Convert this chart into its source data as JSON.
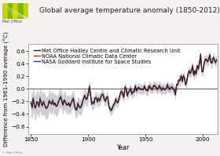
{
  "title": "Global average temperature anomaly (1850-2012)",
  "ylabel": "Difference from 1961-1990 average (°C)",
  "xlabel": "Year",
  "xlim": [
    1848,
    2013
  ],
  "ylim": [
    -0.72,
    0.72
  ],
  "yticks": [
    -0.6,
    -0.4,
    -0.2,
    0.0,
    0.2,
    0.4,
    0.6
  ],
  "xticks": [
    1850,
    1900,
    1950,
    2000
  ],
  "legend_labels": [
    "Met Office Hadley Centre and Climatic Research Unit",
    "NOAA National Climatic Data Center",
    "NASA Goddard Institute for Space Studies"
  ],
  "bg_color": "#f5f3f0",
  "plot_bg": "#ffffff",
  "title_fontsize": 6.5,
  "axis_fontsize": 5.5,
  "legend_fontsize": 4.8,
  "hadcrut": [
    -0.22,
    -0.29,
    -0.15,
    -0.27,
    -0.31,
    -0.2,
    -0.22,
    -0.28,
    -0.16,
    -0.22,
    -0.26,
    -0.21,
    -0.25,
    -0.31,
    -0.3,
    -0.27,
    -0.18,
    -0.22,
    -0.24,
    -0.19,
    -0.26,
    -0.22,
    -0.28,
    -0.26,
    -0.21,
    -0.16,
    -0.13,
    -0.19,
    -0.26,
    -0.17,
    -0.21,
    -0.25,
    -0.26,
    -0.22,
    -0.27,
    -0.24,
    -0.18,
    -0.16,
    -0.25,
    -0.33,
    -0.33,
    -0.24,
    -0.28,
    -0.29,
    -0.28,
    -0.2,
    -0.16,
    -0.1,
    -0.17,
    -0.15,
    -0.08,
    0.04,
    -0.1,
    -0.24,
    -0.22,
    -0.22,
    -0.15,
    -0.13,
    -0.21,
    -0.15,
    -0.18,
    -0.13,
    -0.09,
    -0.1,
    -0.16,
    -0.2,
    -0.13,
    -0.13,
    -0.28,
    -0.32,
    -0.35,
    -0.3,
    -0.26,
    -0.23,
    -0.17,
    -0.21,
    -0.22,
    -0.13,
    -0.08,
    -0.03,
    -0.09,
    -0.13,
    0.02,
    0.01,
    -0.1,
    -0.06,
    -0.03,
    0.0,
    -0.07,
    -0.05,
    -0.04,
    0.04,
    -0.03,
    0.01,
    0.02,
    0.0,
    -0.01,
    0.0,
    -0.02,
    0.05,
    -0.01,
    -0.02,
    -0.03,
    0.05,
    0.02,
    0.01,
    -0.01,
    0.05,
    0.04,
    0.03,
    0.0,
    0.01,
    0.05,
    0.01,
    -0.02,
    0.01,
    0.01,
    -0.02,
    0.01,
    0.06,
    0.02,
    0.0,
    0.02,
    0.03,
    0.0,
    -0.01,
    -0.1,
    0.07,
    0.07,
    0.14,
    0.13,
    0.21,
    0.12,
    0.21,
    0.17,
    0.06,
    0.14,
    0.23,
    0.29,
    0.24,
    0.29,
    0.36,
    0.22,
    0.29,
    0.23,
    0.37,
    0.31,
    0.42,
    0.54,
    0.29,
    0.27,
    0.41,
    0.46,
    0.47,
    0.43,
    0.47,
    0.54,
    0.42,
    0.41,
    0.5,
    0.47,
    0.42,
    0.46
  ],
  "noaa_offset": [
    0.01,
    0.02,
    -0.01,
    0.0,
    0.01,
    -0.01,
    0.01,
    0.0,
    -0.01,
    0.01,
    -0.01,
    0.01,
    0.0,
    0.01,
    0.0,
    0.01,
    0.0,
    -0.01,
    0.01,
    0.0,
    0.01,
    -0.01,
    0.0,
    0.01,
    -0.01,
    0.01,
    0.0,
    0.01,
    0.0,
    -0.01,
    0.01,
    0.0,
    0.01,
    0.0,
    -0.01,
    0.01,
    0.0,
    0.01,
    -0.01,
    0.0,
    0.01,
    0.0,
    -0.01,
    0.01,
    0.0,
    -0.01,
    0.01,
    0.0,
    0.01,
    0.0,
    -0.01,
    0.01,
    0.0,
    0.01,
    -0.01,
    0.0,
    0.01,
    -0.01,
    0.0,
    0.01,
    0.0,
    -0.01,
    0.01,
    0.0,
    0.01,
    0.0,
    -0.01,
    0.01,
    0.0,
    -0.01,
    0.01,
    0.0,
    0.01,
    -0.01,
    0.0,
    0.01,
    0.0,
    -0.01,
    0.01,
    0.0,
    0.01,
    -0.01,
    0.0,
    0.01,
    0.0,
    -0.01,
    0.01,
    0.0,
    0.01,
    -0.01,
    -0.01,
    0.01,
    0.0,
    0.01,
    -0.01,
    0.01,
    0.0,
    -0.01,
    0.01,
    0.0,
    0.01,
    -0.01,
    0.0,
    0.01,
    0.0,
    0.01,
    -0.01,
    0.01,
    0.0,
    0.01,
    0.0,
    -0.01,
    0.01,
    0.0,
    0.01,
    -0.01,
    0.0,
    0.01,
    0.0,
    0.01,
    -0.01,
    0.01,
    0.0,
    0.01,
    -0.01,
    0.0,
    0.01,
    0.0,
    -0.01,
    0.01,
    0.0,
    0.01,
    -0.01,
    0.01,
    0.0,
    0.01,
    -0.01,
    0.0,
    0.01,
    0.01,
    0.0,
    0.01,
    -0.01,
    0.0,
    0.01,
    0.0,
    0.01,
    -0.01,
    0.01,
    0.0,
    0.01,
    0.0,
    -0.01,
    0.01,
    0.0,
    0.01,
    -0.01,
    0.01,
    0.0,
    0.01,
    0.0,
    -0.01,
    0.01
  ],
  "nasa_offset": [
    0.02,
    -0.02,
    0.01,
    -0.01,
    0.02,
    -0.02,
    0.01,
    -0.01,
    0.02,
    -0.01,
    -0.02,
    0.02,
    -0.01,
    0.02,
    -0.01,
    0.02,
    -0.02,
    0.01,
    -0.01,
    0.02,
    0.01,
    -0.02,
    0.01,
    -0.01,
    0.02,
    -0.01,
    0.02,
    -0.02,
    0.01,
    -0.01,
    0.02,
    -0.01,
    0.02,
    -0.01,
    -0.02,
    0.01,
    -0.01,
    0.02,
    -0.02,
    0.01,
    -0.01,
    0.02,
    -0.01,
    -0.02,
    0.01,
    -0.01,
    0.02,
    -0.01,
    0.02,
    -0.02,
    0.01,
    -0.01,
    0.02,
    -0.01,
    0.02,
    -0.02,
    0.01,
    -0.01,
    0.02,
    -0.01,
    -0.02,
    0.01,
    -0.01,
    0.02,
    -0.01,
    0.02,
    -0.02,
    0.01,
    -0.01,
    0.02,
    0.01,
    -0.02,
    0.01,
    -0.01,
    0.02,
    -0.01,
    0.02,
    -0.02,
    0.01,
    -0.01,
    0.02,
    -0.01,
    0.02,
    -0.01,
    -0.02,
    0.01,
    -0.01,
    0.02,
    -0.02,
    0.01,
    -0.01,
    0.02,
    -0.01,
    -0.02,
    0.01,
    -0.01,
    0.02,
    -0.01,
    0.02,
    -0.02,
    0.01,
    -0.01,
    0.02,
    -0.01,
    0.02,
    -0.02,
    0.01,
    -0.01,
    0.02,
    -0.01,
    -0.02,
    0.01,
    -0.01,
    0.02,
    -0.01,
    0.02,
    -0.02,
    0.01,
    -0.01,
    0.02,
    0.01,
    -0.02,
    0.01,
    -0.01,
    0.02,
    -0.01,
    0.02,
    -0.02,
    0.01,
    -0.01,
    0.02,
    -0.01,
    0.02,
    -0.01,
    -0.02,
    0.01,
    -0.01,
    0.02,
    -0.02,
    0.01,
    -0.01,
    0.02,
    -0.01,
    -0.02,
    0.01,
    -0.01,
    0.02,
    -0.01,
    0.02,
    -0.02,
    0.01,
    -0.01,
    0.02,
    -0.01,
    0.02,
    -0.02,
    0.01,
    -0.01,
    0.02,
    -0.01,
    -0.02,
    0.01,
    -0.01
  ]
}
